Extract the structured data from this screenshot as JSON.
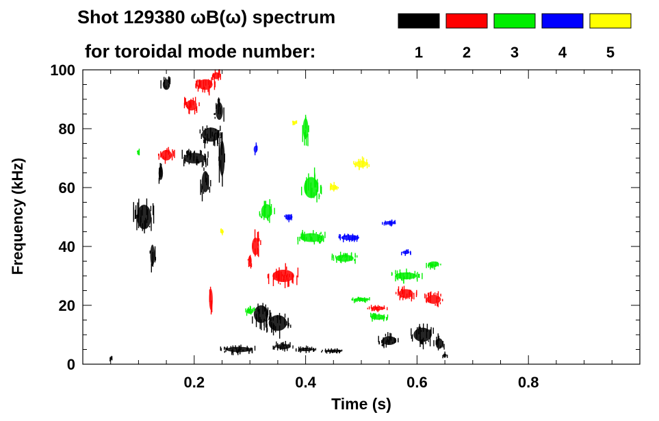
{
  "chart_data": {
    "type": "heatmap",
    "title_line1": "Shot 129380 ωB(ω) spectrum",
    "title_line2": "for toroidal mode number:",
    "xlabel": "Time (s)",
    "ylabel": "Frequency (kHz)",
    "xlim": [
      0.0,
      1.0
    ],
    "ylim": [
      0,
      100
    ],
    "xticks": [
      {
        "value": 0.2,
        "label": "0.2"
      },
      {
        "value": 0.4,
        "label": "0.4"
      },
      {
        "value": 0.6,
        "label": "0.6"
      },
      {
        "value": 0.8,
        "label": "0.8"
      }
    ],
    "yticks": [
      {
        "value": 0,
        "label": "0"
      },
      {
        "value": 20,
        "label": "20"
      },
      {
        "value": 40,
        "label": "40"
      },
      {
        "value": 60,
        "label": "60"
      },
      {
        "value": 80,
        "label": "80"
      },
      {
        "value": 100,
        "label": "100"
      }
    ],
    "legend": [
      {
        "label": "1",
        "mode": 1,
        "color": "#000000"
      },
      {
        "label": "2",
        "mode": 2,
        "color": "#ff0000"
      },
      {
        "label": "3",
        "mode": 3,
        "color": "#00ee00"
      },
      {
        "label": "4",
        "mode": 4,
        "color": "#0000ff"
      },
      {
        "label": "5",
        "mode": 5,
        "color": "#ffff00"
      }
    ],
    "series": [
      {
        "name": "n=1",
        "mode": 1,
        "blobs": [
          {
            "t": 0.11,
            "f": 50,
            "dt": 0.04,
            "df": 14
          },
          {
            "t": 0.125,
            "f": 37,
            "dt": 0.012,
            "df": 12
          },
          {
            "t": 0.14,
            "f": 65,
            "dt": 0.012,
            "df": 8
          },
          {
            "t": 0.15,
            "f": 95,
            "dt": 0.02,
            "df": 6
          },
          {
            "t": 0.2,
            "f": 70,
            "dt": 0.06,
            "df": 6
          },
          {
            "t": 0.23,
            "f": 78,
            "dt": 0.05,
            "df": 8
          },
          {
            "t": 0.245,
            "f": 86,
            "dt": 0.02,
            "df": 10
          },
          {
            "t": 0.25,
            "f": 70,
            "dt": 0.015,
            "df": 20
          },
          {
            "t": 0.22,
            "f": 62,
            "dt": 0.02,
            "df": 12
          },
          {
            "t": 0.28,
            "f": 5,
            "dt": 0.07,
            "df": 3
          },
          {
            "t": 0.32,
            "f": 17,
            "dt": 0.04,
            "df": 10
          },
          {
            "t": 0.35,
            "f": 14,
            "dt": 0.05,
            "df": 9
          },
          {
            "t": 0.36,
            "f": 6,
            "dt": 0.04,
            "df": 3
          },
          {
            "t": 0.4,
            "f": 5,
            "dt": 0.04,
            "df": 2
          },
          {
            "t": 0.45,
            "f": 4.5,
            "dt": 0.05,
            "df": 1.5
          },
          {
            "t": 0.55,
            "f": 8,
            "dt": 0.04,
            "df": 5
          },
          {
            "t": 0.61,
            "f": 10,
            "dt": 0.05,
            "df": 8
          },
          {
            "t": 0.64,
            "f": 7,
            "dt": 0.02,
            "df": 6
          },
          {
            "t": 0.65,
            "f": 3,
            "dt": 0.01,
            "df": 2
          },
          {
            "t": 0.05,
            "f": 2,
            "dt": 0.006,
            "df": 2
          }
        ]
      },
      {
        "name": "n=2",
        "mode": 2,
        "blobs": [
          {
            "t": 0.15,
            "f": 71,
            "dt": 0.03,
            "df": 6
          },
          {
            "t": 0.195,
            "f": 88,
            "dt": 0.03,
            "df": 6
          },
          {
            "t": 0.22,
            "f": 95,
            "dt": 0.04,
            "df": 6
          },
          {
            "t": 0.24,
            "f": 98,
            "dt": 0.02,
            "df": 4
          },
          {
            "t": 0.31,
            "f": 40,
            "dt": 0.02,
            "df": 10
          },
          {
            "t": 0.36,
            "f": 30,
            "dt": 0.06,
            "df": 7
          },
          {
            "t": 0.23,
            "f": 22,
            "dt": 0.01,
            "df": 12
          },
          {
            "t": 0.3,
            "f": 35,
            "dt": 0.01,
            "df": 6
          },
          {
            "t": 0.53,
            "f": 19,
            "dt": 0.04,
            "df": 2
          },
          {
            "t": 0.58,
            "f": 24,
            "dt": 0.04,
            "df": 5
          },
          {
            "t": 0.63,
            "f": 22,
            "dt": 0.04,
            "df": 5
          }
        ]
      },
      {
        "name": "n=3",
        "mode": 3,
        "blobs": [
          {
            "t": 0.41,
            "f": 60,
            "dt": 0.04,
            "df": 12
          },
          {
            "t": 0.4,
            "f": 80,
            "dt": 0.015,
            "df": 12
          },
          {
            "t": 0.33,
            "f": 52,
            "dt": 0.03,
            "df": 8
          },
          {
            "t": 0.41,
            "f": 43,
            "dt": 0.06,
            "df": 5
          },
          {
            "t": 0.47,
            "f": 36,
            "dt": 0.05,
            "df": 4
          },
          {
            "t": 0.58,
            "f": 30,
            "dt": 0.06,
            "df": 4
          },
          {
            "t": 0.63,
            "f": 34,
            "dt": 0.03,
            "df": 3
          },
          {
            "t": 0.3,
            "f": 18,
            "dt": 0.02,
            "df": 3
          },
          {
            "t": 0.5,
            "f": 22,
            "dt": 0.04,
            "df": 2
          },
          {
            "t": 0.53,
            "f": 16,
            "dt": 0.04,
            "df": 3
          },
          {
            "t": 0.1,
            "f": 72,
            "dt": 0.005,
            "df": 2
          }
        ]
      },
      {
        "name": "n=4",
        "mode": 4,
        "blobs": [
          {
            "t": 0.31,
            "f": 73,
            "dt": 0.01,
            "df": 4
          },
          {
            "t": 0.48,
            "f": 43,
            "dt": 0.05,
            "df": 3
          },
          {
            "t": 0.37,
            "f": 50,
            "dt": 0.02,
            "df": 3
          },
          {
            "t": 0.55,
            "f": 48,
            "dt": 0.03,
            "df": 2
          },
          {
            "t": 0.58,
            "f": 38,
            "dt": 0.02,
            "df": 2
          }
        ]
      },
      {
        "name": "n=5",
        "mode": 5,
        "blobs": [
          {
            "t": 0.5,
            "f": 68,
            "dt": 0.03,
            "df": 4
          },
          {
            "t": 0.45,
            "f": 60,
            "dt": 0.02,
            "df": 3
          },
          {
            "t": 0.25,
            "f": 45,
            "dt": 0.01,
            "df": 2
          },
          {
            "t": 0.38,
            "f": 82,
            "dt": 0.01,
            "df": 2
          }
        ]
      }
    ]
  }
}
